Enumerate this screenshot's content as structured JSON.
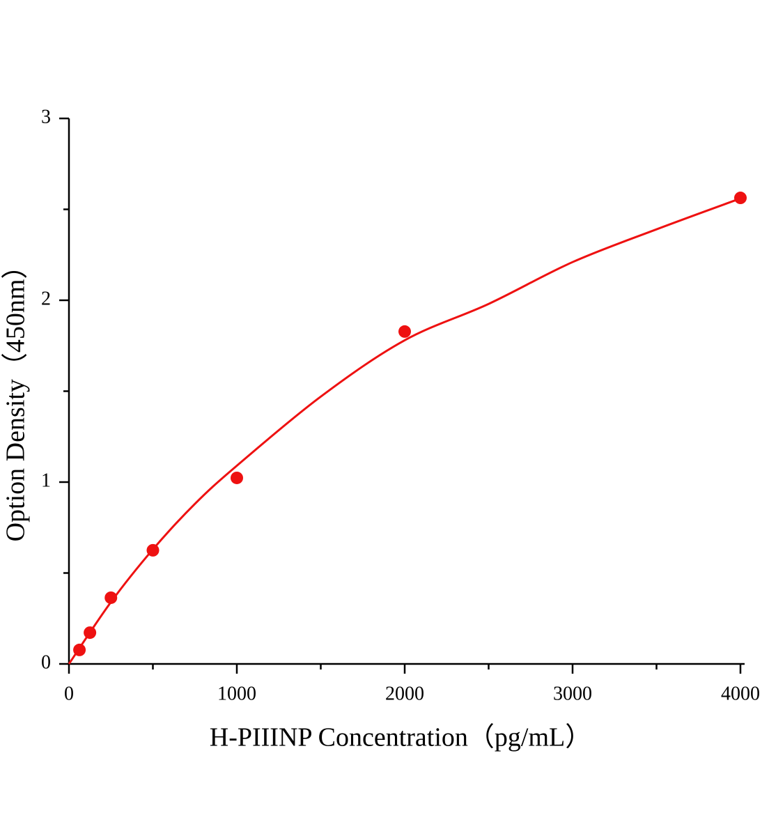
{
  "chart_data": {
    "type": "scatter",
    "x_label": "H-PIIINP Concentration（pg/mL）",
    "y_label": "Option Density（450nm）",
    "points": {
      "x": [
        62.5,
        125,
        250,
        500,
        1000,
        2000,
        4000
      ],
      "y": [
        0.077,
        0.172,
        0.364,
        0.625,
        1.023,
        1.828,
        2.563
      ]
    },
    "curve": {
      "x": [
        0,
        250,
        500,
        750,
        1000,
        1500,
        2000,
        2500,
        3000,
        3500,
        4000
      ],
      "y": [
        0,
        0.34,
        0.63,
        0.88,
        1.09,
        1.47,
        1.78,
        1.98,
        2.21,
        2.39,
        2.56
      ]
    },
    "color": "#ee1111",
    "xlim": [
      0,
      4000
    ],
    "xticks": [
      0,
      1000,
      2000,
      3000,
      4000
    ],
    "xminor_ticks": [
      500,
      1500,
      2500,
      3500
    ],
    "ylim": [
      0,
      3
    ],
    "yticks": [
      0,
      1,
      2,
      3
    ],
    "yminor_ticks": [
      0.5,
      1.5,
      2.5
    ]
  }
}
